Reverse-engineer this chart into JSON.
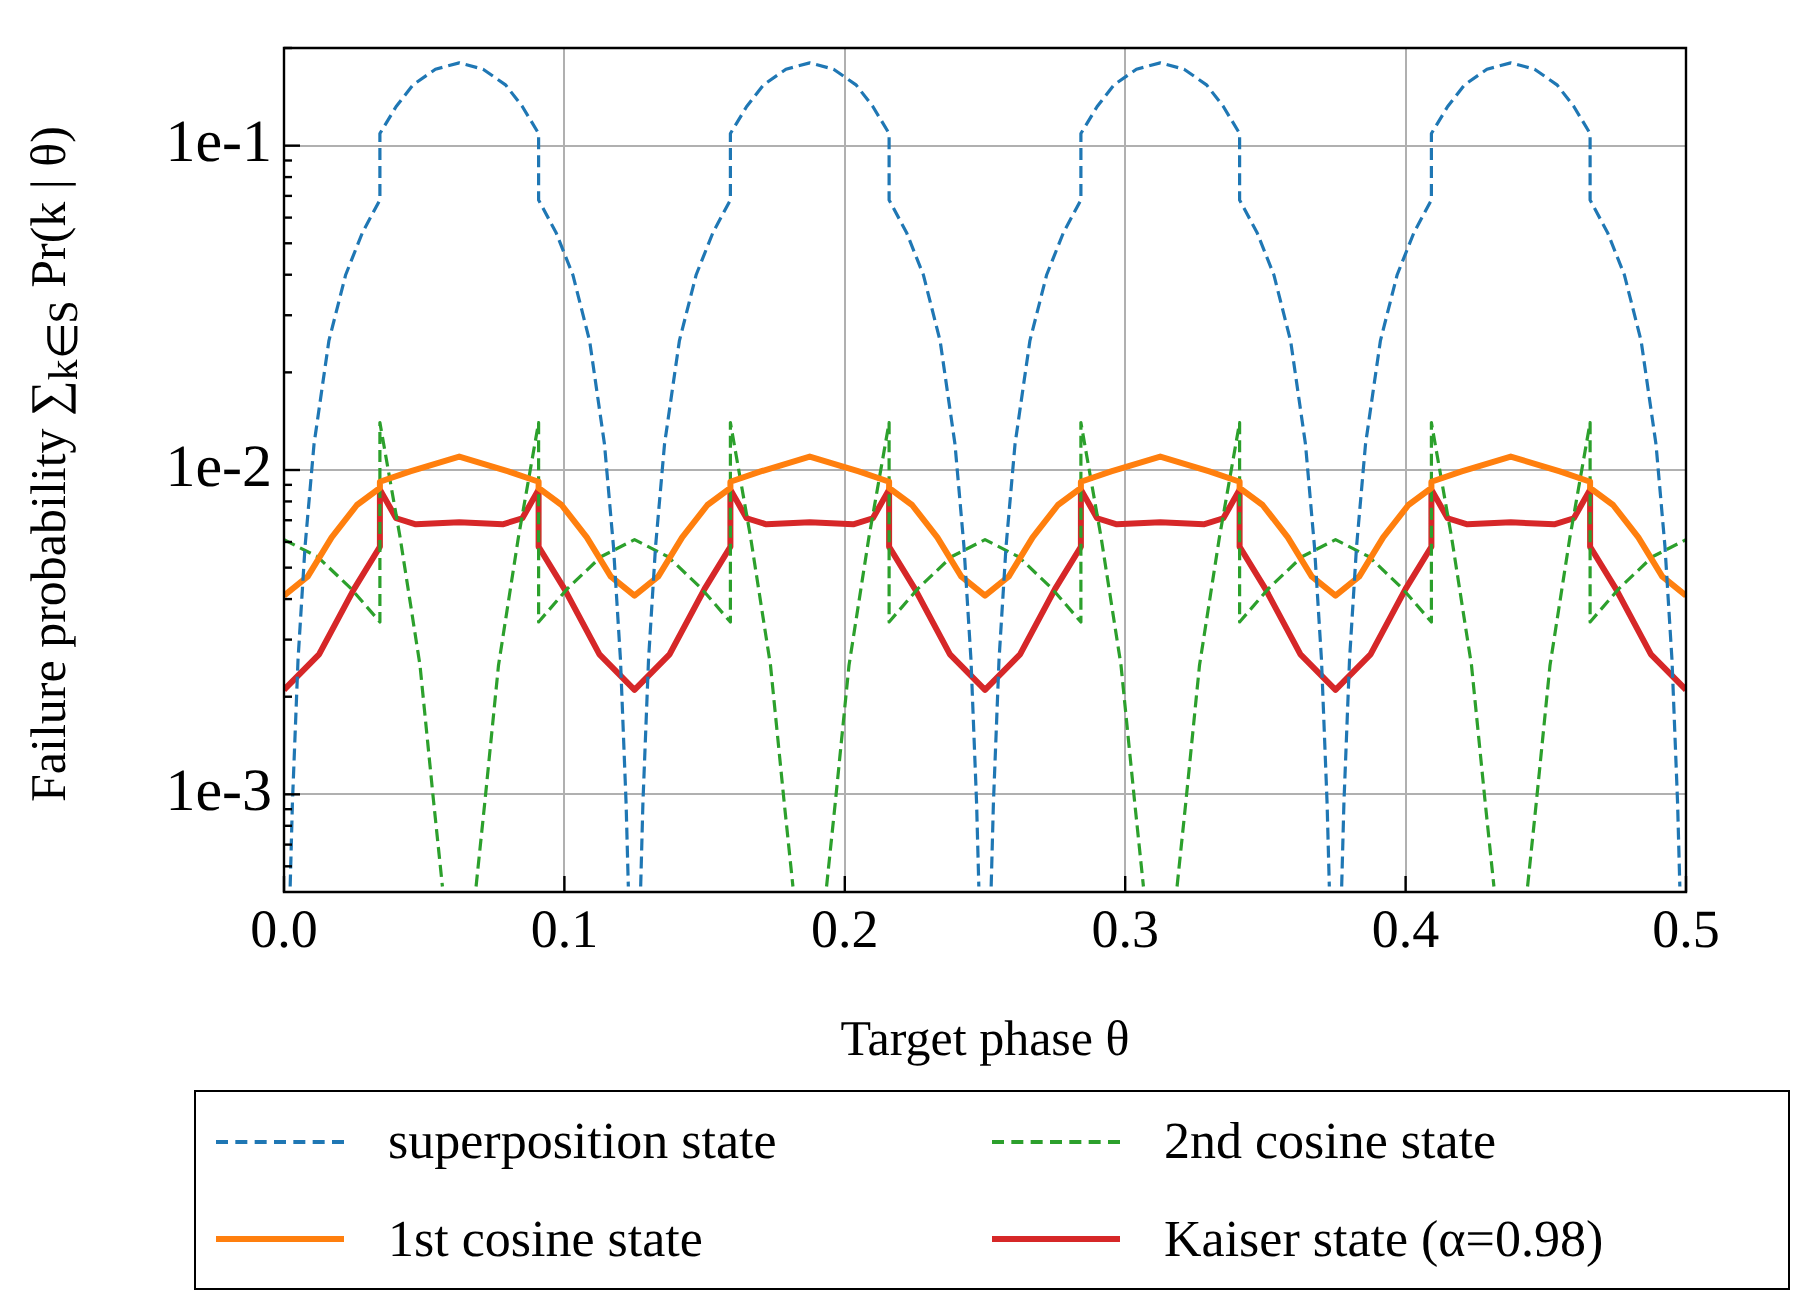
{
  "chart_data": {
    "type": "line",
    "xlabel": "Target phase θ",
    "ylabel": "Failure probability ∑$_{k∈S}$ Pr(k | θ)",
    "log": "y",
    "grid": true,
    "legend": "bottom",
    "marker": "none",
    "xlim": [
      0,
      0.5
    ],
    "xticks": [
      {
        "value": 0,
        "label": "0.0"
      },
      0.1,
      0.2,
      0.3,
      0.4,
      0.5
    ],
    "ylim": [
      0.0005,
      0.2
    ],
    "yticks": [
      {
        "value": 0.0006,
        "label": null
      },
      {
        "value": 0.0007,
        "label": null
      },
      {
        "value": 0.0008,
        "label": null
      },
      {
        "value": 0.0009,
        "label": null
      },
      {
        "value": 0.001,
        "label": "1e-3"
      },
      {
        "value": 0.002,
        "label": null
      },
      {
        "value": 0.003,
        "label": null
      },
      {
        "value": 0.004,
        "label": null
      },
      {
        "value": 0.005,
        "label": null
      },
      {
        "value": 0.006,
        "label": null
      },
      {
        "value": 0.007,
        "label": null
      },
      {
        "value": 0.008,
        "label": null
      },
      {
        "value": 0.009,
        "label": null
      },
      {
        "value": 0.01,
        "label": "1e-2"
      },
      {
        "value": 0.02,
        "label": null
      },
      {
        "value": 0.03,
        "label": null
      },
      {
        "value": 0.04,
        "label": null
      },
      {
        "value": 0.05,
        "label": null
      },
      {
        "value": 0.06,
        "label": null
      },
      {
        "value": 0.07,
        "label": null
      },
      {
        "value": 0.08,
        "label": null
      },
      {
        "value": 0.09,
        "label": null
      },
      {
        "value": 0.1,
        "label": "1e-1"
      },
      {
        "value": 0.2,
        "label": null
      }
    ],
    "series": [
      {
        "name": "superposition state",
        "color": "#1f77b4",
        "line_style": "dashed",
        "x": [
          0.0022,
          0.003,
          0.005,
          0.0075,
          0.0107,
          0.016,
          0.022,
          0.028,
          0.0342,
          0.0342,
          0.04,
          0.046,
          0.054,
          0.0625,
          0.071,
          0.079,
          0.085,
          0.0908,
          0.0908,
          0.097,
          0.103,
          0.109,
          0.1143,
          0.1175,
          0.12,
          0.122,
          0.1228,
          0.125,
          0.1272,
          0.128,
          0.13,
          0.1325,
          0.1357,
          0.141,
          0.147,
          0.153,
          0.1592,
          0.1592,
          0.165,
          0.171,
          0.179,
          0.1875,
          0.196,
          0.204,
          0.21,
          0.2158,
          0.2158,
          0.222,
          0.228,
          0.234,
          0.2393,
          0.2425,
          0.245,
          0.247,
          0.2478,
          0.25,
          0.2522,
          0.253,
          0.255,
          0.2575,
          0.2607,
          0.266,
          0.272,
          0.278,
          0.2842,
          0.2842,
          0.29,
          0.296,
          0.304,
          0.3125,
          0.321,
          0.329,
          0.335,
          0.3408,
          0.3408,
          0.347,
          0.353,
          0.359,
          0.3643,
          0.3675,
          0.37,
          0.372,
          0.3728,
          0.375,
          0.3772,
          0.378,
          0.38,
          0.3825,
          0.3857,
          0.391,
          0.397,
          0.403,
          0.4092,
          0.4092,
          0.415,
          0.421,
          0.429,
          0.4375,
          0.446,
          0.454,
          0.46,
          0.4658,
          0.4658,
          0.472,
          0.478,
          0.484,
          0.4893,
          0.4925,
          0.495,
          0.497,
          0.4978
        ],
        "values": [
          0.00052,
          0.00094,
          0.0026,
          0.0058,
          0.012,
          0.025,
          0.04,
          0.054,
          0.068,
          0.109,
          0.132,
          0.154,
          0.172,
          0.18,
          0.172,
          0.154,
          0.132,
          0.109,
          0.068,
          0.054,
          0.04,
          0.025,
          0.012,
          0.0058,
          0.0026,
          0.00094,
          0.00052,
          null,
          0.00052,
          0.00094,
          0.0026,
          0.0058,
          0.012,
          0.025,
          0.04,
          0.054,
          0.068,
          0.109,
          0.132,
          0.154,
          0.172,
          0.18,
          0.172,
          0.154,
          0.132,
          0.109,
          0.068,
          0.054,
          0.04,
          0.025,
          0.012,
          0.0058,
          0.0026,
          0.00094,
          0.00052,
          null,
          0.00052,
          0.00094,
          0.0026,
          0.0058,
          0.012,
          0.025,
          0.04,
          0.054,
          0.068,
          0.109,
          0.132,
          0.154,
          0.172,
          0.18,
          0.172,
          0.154,
          0.132,
          0.109,
          0.068,
          0.054,
          0.04,
          0.025,
          0.012,
          0.0058,
          0.0026,
          0.00094,
          0.00052,
          null,
          0.00052,
          0.00094,
          0.0026,
          0.0058,
          0.012,
          0.025,
          0.04,
          0.054,
          0.068,
          0.109,
          0.132,
          0.154,
          0.172,
          0.18,
          0.172,
          0.154,
          0.132,
          0.109,
          0.068,
          0.054,
          0.04,
          0.025,
          0.012,
          0.0058,
          0.0026,
          0.00094,
          0.00052
        ]
      },
      {
        "name": "1st cosine state",
        "color": "#ff7f0e",
        "line_style": "solid",
        "x": [
          0,
          0.0085,
          0.017,
          0.026,
          0.0342,
          0.0342,
          0.045,
          0.0625,
          0.08,
          0.0908,
          0.0908,
          0.099,
          0.108,
          0.1165,
          0.125,
          0.1335,
          0.142,
          0.151,
          0.1592,
          0.1592,
          0.17,
          0.1875,
          0.205,
          0.2158,
          0.2158,
          0.224,
          0.233,
          0.2415,
          0.25,
          0.2585,
          0.267,
          0.276,
          0.2842,
          0.2842,
          0.295,
          0.3125,
          0.33,
          0.3408,
          0.3408,
          0.349,
          0.358,
          0.3665,
          0.375,
          0.3835,
          0.392,
          0.401,
          0.4092,
          0.4092,
          0.42,
          0.4375,
          0.455,
          0.4658,
          0.4658,
          0.474,
          0.483,
          0.4915,
          0.5
        ],
        "values": [
          0.0041,
          0.0047,
          0.0062,
          0.0078,
          0.0088,
          0.0092,
          0.0099,
          0.011,
          0.0099,
          0.0092,
          0.0088,
          0.0078,
          0.0062,
          0.0047,
          0.0041,
          0.0047,
          0.0062,
          0.0078,
          0.0088,
          0.0092,
          0.0099,
          0.011,
          0.0099,
          0.0092,
          0.0088,
          0.0078,
          0.0062,
          0.0047,
          0.0041,
          0.0047,
          0.0062,
          0.0078,
          0.0088,
          0.0092,
          0.0099,
          0.011,
          0.0099,
          0.0092,
          0.0088,
          0.0078,
          0.0062,
          0.0047,
          0.0041,
          0.0047,
          0.0062,
          0.0078,
          0.0088,
          0.0092,
          0.0099,
          0.011,
          0.0099,
          0.0092,
          0.0088,
          0.0078,
          0.0062,
          0.0047,
          0.0041
        ]
      },
      {
        "name": "2nd cosine state",
        "color": "#2ca02c",
        "line_style": "dashed",
        "x": [
          0,
          0.012,
          0.024,
          0.0342,
          0.0342,
          0.0414,
          0.0485,
          0.0533,
          0.0565,
          0.0625,
          0.0685,
          0.0717,
          0.0765,
          0.0836,
          0.0908,
          0.0908,
          0.101,
          0.113,
          0.125,
          0.137,
          0.149,
          0.1592,
          0.1592,
          0.1664,
          0.1735,
          0.1783,
          0.1815,
          0.1875,
          0.1935,
          0.1967,
          0.2015,
          0.2086,
          0.2158,
          0.2158,
          0.226,
          0.238,
          0.25,
          0.262,
          0.274,
          0.2842,
          0.2842,
          0.2914,
          0.2985,
          0.3033,
          0.3065,
          0.3125,
          0.3185,
          0.3217,
          0.3265,
          0.3336,
          0.3408,
          0.3408,
          0.351,
          0.363,
          0.375,
          0.387,
          0.399,
          0.4092,
          0.4092,
          0.4164,
          0.4235,
          0.4283,
          0.4315,
          0.4375,
          0.4435,
          0.4467,
          0.4515,
          0.4586,
          0.4658,
          0.4658,
          0.476,
          0.488,
          0.5
        ],
        "values": [
          0.0061,
          0.0054,
          0.0043,
          0.0034,
          0.014,
          0.0062,
          0.0025,
          0.00096,
          0.00052,
          null,
          0.00052,
          0.00096,
          0.0025,
          0.0062,
          0.014,
          0.0034,
          0.0043,
          0.0054,
          0.0061,
          0.0054,
          0.0043,
          0.0034,
          0.014,
          0.0062,
          0.0025,
          0.00096,
          0.00052,
          null,
          0.00052,
          0.00096,
          0.0025,
          0.0062,
          0.014,
          0.0034,
          0.0043,
          0.0054,
          0.0061,
          0.0054,
          0.0043,
          0.0034,
          0.014,
          0.0062,
          0.0025,
          0.00096,
          0.00052,
          null,
          0.00052,
          0.00096,
          0.0025,
          0.0062,
          0.014,
          0.0034,
          0.0043,
          0.0054,
          0.0061,
          0.0054,
          0.0043,
          0.0034,
          0.014,
          0.0062,
          0.0025,
          0.00096,
          0.00052,
          null,
          0.00052,
          0.00096,
          0.0025,
          0.0062,
          0.014,
          0.0034,
          0.0043,
          0.0054,
          0.0061
        ]
      },
      {
        "name": "Kaiser state (α=0.98)",
        "color": "#d62728",
        "line_style": "solid",
        "x": [
          0,
          0.0125,
          0.025,
          0.0342,
          0.0342,
          0.04,
          0.047,
          0.0625,
          0.078,
          0.085,
          0.0908,
          0.0908,
          0.1,
          0.1125,
          0.125,
          0.1375,
          0.15,
          0.1592,
          0.1592,
          0.165,
          0.172,
          0.1875,
          0.203,
          0.21,
          0.2158,
          0.2158,
          0.225,
          0.2375,
          0.25,
          0.2625,
          0.275,
          0.2842,
          0.2842,
          0.29,
          0.297,
          0.3125,
          0.328,
          0.335,
          0.3408,
          0.3408,
          0.35,
          0.3625,
          0.375,
          0.3875,
          0.4,
          0.4092,
          0.4092,
          0.415,
          0.422,
          0.4375,
          0.453,
          0.46,
          0.4658,
          0.4658,
          0.475,
          0.4875,
          0.5
        ],
        "values": [
          0.0021,
          0.0027,
          0.0043,
          0.0058,
          0.0087,
          0.0071,
          0.0068,
          0.0069,
          0.0068,
          0.0071,
          0.0087,
          0.0058,
          0.0043,
          0.0027,
          0.0021,
          0.0027,
          0.0043,
          0.0058,
          0.0087,
          0.0071,
          0.0068,
          0.0069,
          0.0068,
          0.0071,
          0.0087,
          0.0058,
          0.0043,
          0.0027,
          0.0021,
          0.0027,
          0.0043,
          0.0058,
          0.0087,
          0.0071,
          0.0068,
          0.0069,
          0.0068,
          0.0071,
          0.0087,
          0.0058,
          0.0043,
          0.0027,
          0.0021,
          0.0027,
          0.0043,
          0.0058,
          0.0087,
          0.0071,
          0.0068,
          0.0069,
          0.0068,
          0.0071,
          0.0087,
          0.0058,
          0.0043,
          0.0027,
          0.0021
        ]
      }
    ]
  }
}
